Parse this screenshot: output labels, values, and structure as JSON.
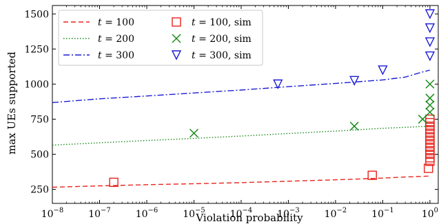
{
  "chart_data": {
    "type": "line",
    "xlabel": "Violation probability",
    "ylabel": "max UEs supported",
    "xscale": "log",
    "xlim": [
      1e-08,
      1.5
    ],
    "ylim": [
      150,
      1560
    ],
    "x_ticks": [
      {
        "value": 1e-08,
        "label": "10−8",
        "base": "10",
        "exp": "−8"
      },
      {
        "value": 1e-07,
        "label": "10−7",
        "base": "10",
        "exp": "−7"
      },
      {
        "value": 1e-06,
        "label": "10−6",
        "base": "10",
        "exp": "−6"
      },
      {
        "value": 1e-05,
        "label": "10−5",
        "base": "10",
        "exp": "−5"
      },
      {
        "value": 0.0001,
        "label": "10−4",
        "base": "10",
        "exp": "−4"
      },
      {
        "value": 0.001,
        "label": "10−3",
        "base": "10",
        "exp": "−3"
      },
      {
        "value": 0.01,
        "label": "10−2",
        "base": "10",
        "exp": "−2"
      },
      {
        "value": 0.1,
        "label": "10−1",
        "base": "10",
        "exp": "−1"
      },
      {
        "value": 1,
        "label": "100",
        "base": "10",
        "exp": "0"
      }
    ],
    "y_ticks": [
      250,
      500,
      750,
      1000,
      1250,
      1500
    ],
    "legend_position": "top-left",
    "grid": false,
    "series": [
      {
        "name": "t = 100",
        "name_var": "t",
        "name_rest": " = 100",
        "kind": "line",
        "style": "dashed",
        "color": "#e8221b",
        "x": [
          1e-08,
          1e-07,
          1e-06,
          1e-05,
          0.0001,
          0.001,
          0.01,
          0.1,
          0.3,
          0.6,
          1.0
        ],
        "y": [
          265,
          275,
          283,
          290,
          298,
          308,
          318,
          330,
          338,
          342,
          345
        ]
      },
      {
        "name": "t = 200",
        "name_var": "t",
        "name_rest": " = 200",
        "kind": "line",
        "style": "dotted",
        "color": "#178a17",
        "x": [
          1e-08,
          1e-07,
          1e-06,
          1e-05,
          0.0001,
          0.001,
          0.01,
          0.1,
          0.3,
          0.6,
          1.0
        ],
        "y": [
          565,
          582,
          598,
          613,
          630,
          648,
          665,
          685,
          692,
          697,
          700
        ]
      },
      {
        "name": "t = 300",
        "name_var": "t",
        "name_rest": " = 300",
        "kind": "line",
        "style": "dashdot",
        "color": "#1a1ad6",
        "x": [
          1e-08,
          1e-07,
          1e-06,
          1e-05,
          0.0001,
          0.001,
          0.01,
          0.1,
          0.3,
          0.6,
          1.0
        ],
        "y": [
          868,
          895,
          915,
          937,
          958,
          982,
          1005,
          1030,
          1050,
          1080,
          1100
        ]
      },
      {
        "name": "t = 100, sim",
        "name_var": "t",
        "name_rest": " = 100, sim",
        "kind": "marker",
        "marker": "square",
        "color": "#e8221b",
        "x": [
          2e-07,
          0.06,
          0.93,
          1.0,
          1.0,
          1.0,
          1.0,
          1.0,
          1.0,
          1.0,
          1.0,
          1.0,
          1.0,
          1.0,
          1.0,
          1.0
        ],
        "y": [
          300,
          350,
          400,
          450,
          475,
          500,
          525,
          550,
          575,
          600,
          625,
          650,
          675,
          700,
          725,
          750
        ]
      },
      {
        "name": "t = 200, sim",
        "name_var": "t",
        "name_rest": " = 200, sim",
        "kind": "marker",
        "marker": "x",
        "color": "#178a17",
        "x": [
          1e-05,
          0.025,
          0.7,
          1.0,
          1.0,
          1.0,
          1.0
        ],
        "y": [
          650,
          700,
          750,
          800,
          850,
          900,
          1000
        ]
      },
      {
        "name": "t = 300, sim",
        "name_var": "t",
        "name_rest": " = 300, sim",
        "kind": "marker",
        "marker": "triangle-down",
        "color": "#1a1ad6",
        "x": [
          0.0006,
          0.025,
          0.1,
          1.0,
          1.0,
          1.0,
          1.0
        ],
        "y": [
          1000,
          1025,
          1100,
          1200,
          1300,
          1400,
          1500
        ]
      }
    ]
  }
}
